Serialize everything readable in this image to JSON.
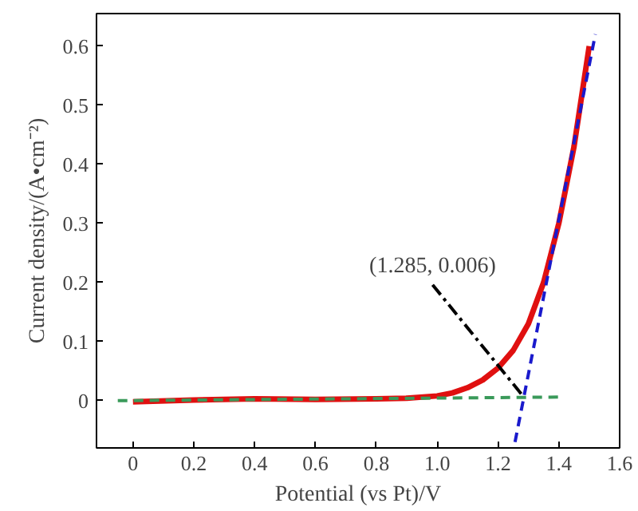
{
  "chart_data": {
    "type": "line",
    "xlabel": "Potential (vs Pt)/V",
    "ylabel": "Current density/(A•cm⁻²)",
    "xlim": [
      -0.12,
      1.6
    ],
    "ylim": [
      -0.08,
      0.655
    ],
    "xticks": [
      0,
      0.2,
      0.4,
      0.6,
      0.8,
      {
        "value": 1.0,
        "label": "1.0"
      },
      1.2,
      1.4,
      1.6
    ],
    "yticks": [
      0,
      0.1,
      0.2,
      0.3,
      0.4,
      0.5,
      0.6
    ],
    "grid": false,
    "marker": "none",
    "series": [
      {
        "color": "#e01010",
        "line_style": "solid",
        "x": [
          0,
          0.2,
          0.4,
          0.6,
          0.8,
          0.9,
          1.0,
          1.05,
          1.1,
          1.15,
          1.2,
          1.25,
          1.3,
          1.35,
          1.4,
          1.45,
          1.5
        ],
        "values": [
          -0.002,
          0.001,
          0.003,
          0.002,
          0.003,
          0.004,
          0.008,
          0.013,
          0.022,
          0.035,
          0.055,
          0.085,
          0.13,
          0.2,
          0.3,
          0.43,
          0.6
        ]
      },
      {
        "color": "#1a1acc",
        "line_style": "dashed",
        "x": [
          1.256,
          1.52
        ],
        "values": [
          -0.07,
          0.62
        ]
      },
      {
        "color": "#3a9a5a",
        "line_style": "dashed",
        "x": [
          -0.05,
          1.4
        ],
        "values": [
          0.0,
          0.006
        ]
      }
    ],
    "annotations": [
      {
        "text": "(1.285, 0.006)",
        "x": 1.285,
        "y": 0.006
      }
    ]
  }
}
